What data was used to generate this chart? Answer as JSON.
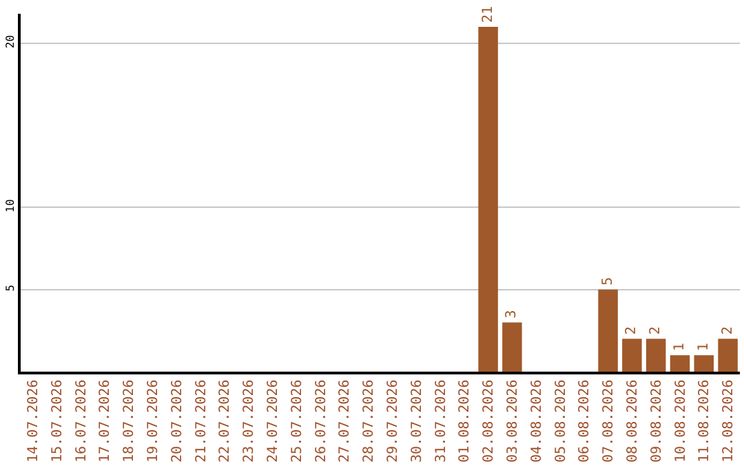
{
  "chart_data": {
    "type": "bar",
    "categories": [
      "14.07.2026",
      "15.07.2026",
      "16.07.2026",
      "17.07.2026",
      "18.07.2026",
      "19.07.2026",
      "20.07.2026",
      "21.07.2026",
      "22.07.2026",
      "23.07.2026",
      "24.07.2026",
      "25.07.2026",
      "26.07.2026",
      "27.07.2026",
      "28.07.2026",
      "29.07.2026",
      "30.07.2026",
      "31.07.2026",
      "01.08.2026",
      "02.08.2026",
      "03.08.2026",
      "04.08.2026",
      "05.08.2026",
      "06.08.2026",
      "07.08.2026",
      "08.08.2026",
      "09.08.2026",
      "10.08.2026",
      "11.08.2026",
      "12.08.2026"
    ],
    "values": [
      0,
      0,
      0,
      0,
      0,
      0,
      0,
      0,
      0,
      0,
      0,
      0,
      0,
      0,
      0,
      0,
      0,
      0,
      0,
      21,
      3,
      0,
      0,
      0,
      5,
      2,
      2,
      1,
      1,
      2
    ],
    "value_labels": [
      null,
      null,
      null,
      null,
      null,
      null,
      null,
      null,
      null,
      null,
      null,
      null,
      null,
      null,
      null,
      null,
      null,
      null,
      null,
      "21",
      "3",
      null,
      null,
      null,
      "5",
      "2",
      "2",
      "1",
      "1",
      "2"
    ],
    "color": "#a0592a",
    "ylim": [
      0,
      21.8
    ],
    "yticks": [
      5,
      10,
      20
    ],
    "grid": "y",
    "legend": false
  }
}
